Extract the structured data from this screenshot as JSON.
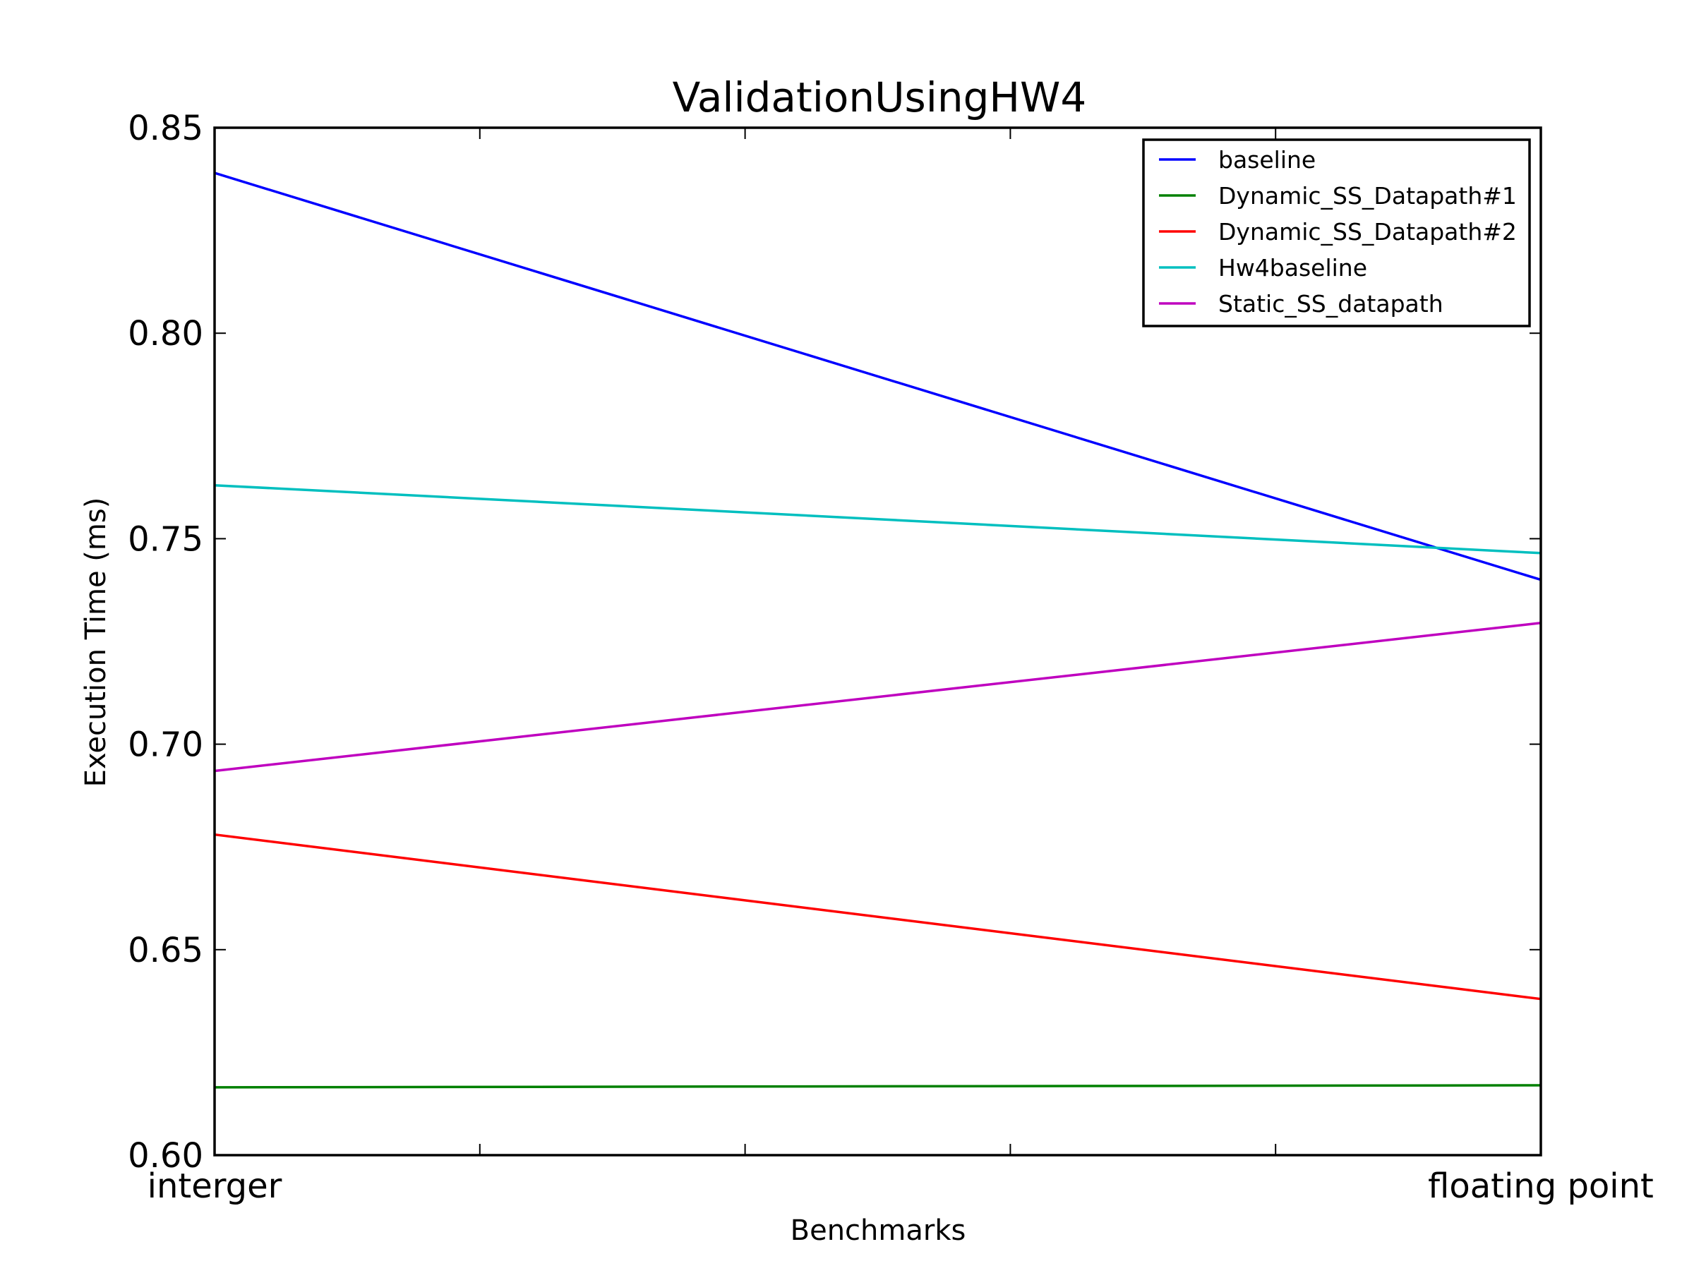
{
  "chart_data": {
    "type": "line",
    "title": "ValidationUsingHW4",
    "xlabel": "Benchmarks",
    "ylabel": "Execution Time (ms)",
    "categories": [
      "interger",
      "floating point"
    ],
    "ylim": [
      0.6,
      0.85
    ],
    "yticks": [
      0.6,
      0.65,
      0.7,
      0.75,
      0.8,
      0.85
    ],
    "ytick_labels": [
      "0.60",
      "0.65",
      "0.70",
      "0.75",
      "0.80",
      "0.85"
    ],
    "grid": false,
    "legend_position": "top-right",
    "series": [
      {
        "name": "baseline",
        "color": "#0000ff",
        "values": [
          0.839,
          0.74
        ]
      },
      {
        "name": "Dynamic_SS_Datapath#1",
        "color": "#008000",
        "values": [
          0.6165,
          0.617
        ]
      },
      {
        "name": "Dynamic_SS_Datapath#2",
        "color": "#ff0000",
        "values": [
          0.678,
          0.638
        ]
      },
      {
        "name": "Hw4baseline",
        "color": "#00bfbf",
        "values": [
          0.763,
          0.7465
        ]
      },
      {
        "name": "Static_SS_datapath",
        "color": "#bf00bf",
        "values": [
          0.6935,
          0.7295
        ]
      }
    ]
  }
}
